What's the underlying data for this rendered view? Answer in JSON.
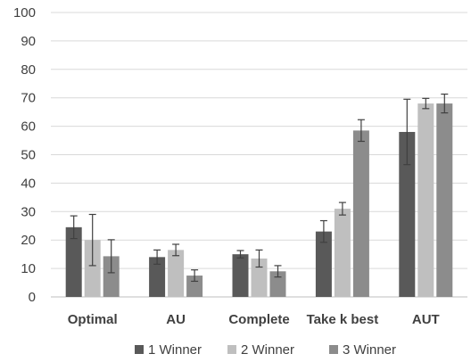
{
  "chart_data": {
    "type": "bar",
    "title": "",
    "xlabel": "",
    "ylabel": "",
    "ylim": [
      0,
      100
    ],
    "yticks": [
      0,
      10,
      20,
      30,
      40,
      50,
      60,
      70,
      80,
      90,
      100
    ],
    "grid": true,
    "legend_position": "bottom",
    "categories": [
      "Optimal",
      "AU",
      "Complete",
      "Take k best",
      "AUT"
    ],
    "series": [
      {
        "name": "1 Winner",
        "color": "#595959",
        "values": [
          24.5,
          14,
          15,
          23,
          58
        ],
        "error": [
          4,
          2.5,
          1.3,
          3.8,
          11.5
        ]
      },
      {
        "name": "2 Winner",
        "color": "#bfbfbf",
        "values": [
          20,
          16.5,
          13.5,
          31,
          68
        ],
        "error": [
          9,
          2,
          3,
          2.2,
          1.8
        ]
      },
      {
        "name": "3 Winner",
        "color": "#8c8c8c",
        "values": [
          14.3,
          7.5,
          9,
          58.5,
          68
        ],
        "error": [
          5.8,
          2,
          2,
          3.8,
          3.3
        ]
      }
    ]
  }
}
